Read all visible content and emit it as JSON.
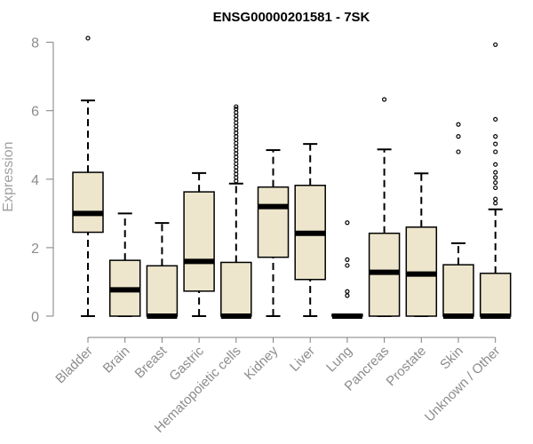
{
  "chart_data": {
    "type": "box",
    "title": "ENSG00000201581 - 7SK",
    "xlabel": "",
    "ylabel": "Expression",
    "ylim": [
      0,
      8.2
    ],
    "yticks": [
      0,
      2,
      4,
      6,
      8
    ],
    "grid": false,
    "colors": {
      "box_fill": "#ede6cc",
      "stroke": "#000000",
      "axis_text": "#8c8c8c"
    },
    "categories": [
      "Bladder",
      "Brain",
      "Breast",
      "Gastric",
      "Hematopoietic cells",
      "Kidney",
      "Liver",
      "Lung",
      "Pancreas",
      "Prostate",
      "Skin",
      "Unknown / Other"
    ],
    "boxes": [
      {
        "min": 0,
        "q1": 2.45,
        "median": 3.0,
        "q3": 4.2,
        "max": 6.3,
        "outliers": [
          8.12
        ]
      },
      {
        "min": 0,
        "q1": 0,
        "median": 0.77,
        "q3": 1.63,
        "max": 3.0,
        "outliers": []
      },
      {
        "min": 0,
        "q1": 0,
        "median": 0,
        "q3": 1.47,
        "max": 2.72,
        "outliers": []
      },
      {
        "min": 0,
        "q1": 0.73,
        "median": 1.6,
        "q3": 3.63,
        "max": 4.18,
        "outliers": []
      },
      {
        "min": 0,
        "q1": 0,
        "median": 0,
        "q3": 1.57,
        "max": 3.87,
        "outliers": [
          3.95,
          4.05,
          4.15,
          4.25,
          4.35,
          4.45,
          4.55,
          4.65,
          4.75,
          4.85,
          4.95,
          5.05,
          5.15,
          5.25,
          5.35,
          5.45,
          5.55,
          5.65,
          5.75,
          5.85,
          5.95,
          6.05,
          6.12
        ]
      },
      {
        "min": 0,
        "q1": 1.72,
        "median": 3.2,
        "q3": 3.77,
        "max": 4.85,
        "outliers": []
      },
      {
        "min": 0,
        "q1": 1.07,
        "median": 2.42,
        "q3": 3.82,
        "max": 5.03,
        "outliers": []
      },
      {
        "min": 0,
        "q1": 0,
        "median": 0,
        "q3": 0.05,
        "max": 0.05,
        "outliers": [
          0.6,
          0.72,
          1.48,
          1.65,
          2.73
        ]
      },
      {
        "min": 0,
        "q1": 0,
        "median": 1.28,
        "q3": 2.42,
        "max": 4.87,
        "outliers": [
          6.33
        ]
      },
      {
        "min": 0,
        "q1": 0,
        "median": 1.23,
        "q3": 2.6,
        "max": 4.17,
        "outliers": []
      },
      {
        "min": 0,
        "q1": 0,
        "median": 0,
        "q3": 1.5,
        "max": 2.13,
        "outliers": [
          4.8,
          5.25,
          5.6
        ]
      },
      {
        "min": 0,
        "q1": 0,
        "median": 0,
        "q3": 1.25,
        "max": 3.12,
        "outliers": [
          3.3,
          3.42,
          3.75,
          3.9,
          4.05,
          4.2,
          4.43,
          4.8,
          5.03,
          5.25,
          5.75,
          7.93
        ]
      }
    ]
  }
}
